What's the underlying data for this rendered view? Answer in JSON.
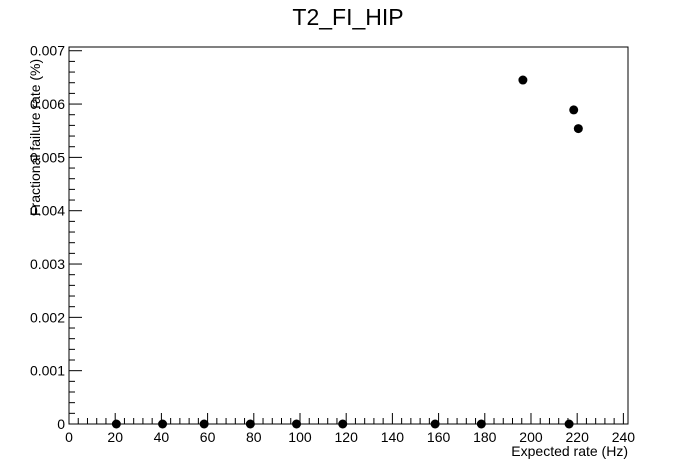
{
  "chart_data": {
    "type": "scatter",
    "title": "T2_FI_HIP",
    "xlabel": "Expected rate (Hz)",
    "ylabel": "Fractional failure rate (%)",
    "xlim": [
      0,
      242
    ],
    "ylim": [
      0,
      0.00707
    ],
    "xticks": [
      "0",
      "20",
      "40",
      "60",
      "80",
      "100",
      "120",
      "140",
      "160",
      "180",
      "200",
      "220",
      "240"
    ],
    "yticks": [
      "0",
      "0.001",
      "0.002",
      "0.003",
      "0.004",
      "0.005",
      "0.006",
      "0.007"
    ],
    "grid": false,
    "points": [
      {
        "x": 20.5,
        "y": 0
      },
      {
        "x": 40.5,
        "y": 0
      },
      {
        "x": 58.5,
        "y": 0
      },
      {
        "x": 78.5,
        "y": 0
      },
      {
        "x": 98.5,
        "y": 0
      },
      {
        "x": 118.5,
        "y": 0
      },
      {
        "x": 158.5,
        "y": 0
      },
      {
        "x": 178.5,
        "y": 0
      },
      {
        "x": 196.5,
        "y": 0.00645
      },
      {
        "x": 216.5,
        "y": 0
      },
      {
        "x": 218.5,
        "y": 0.00589
      },
      {
        "x": 220.5,
        "y": 0.00554
      }
    ]
  }
}
